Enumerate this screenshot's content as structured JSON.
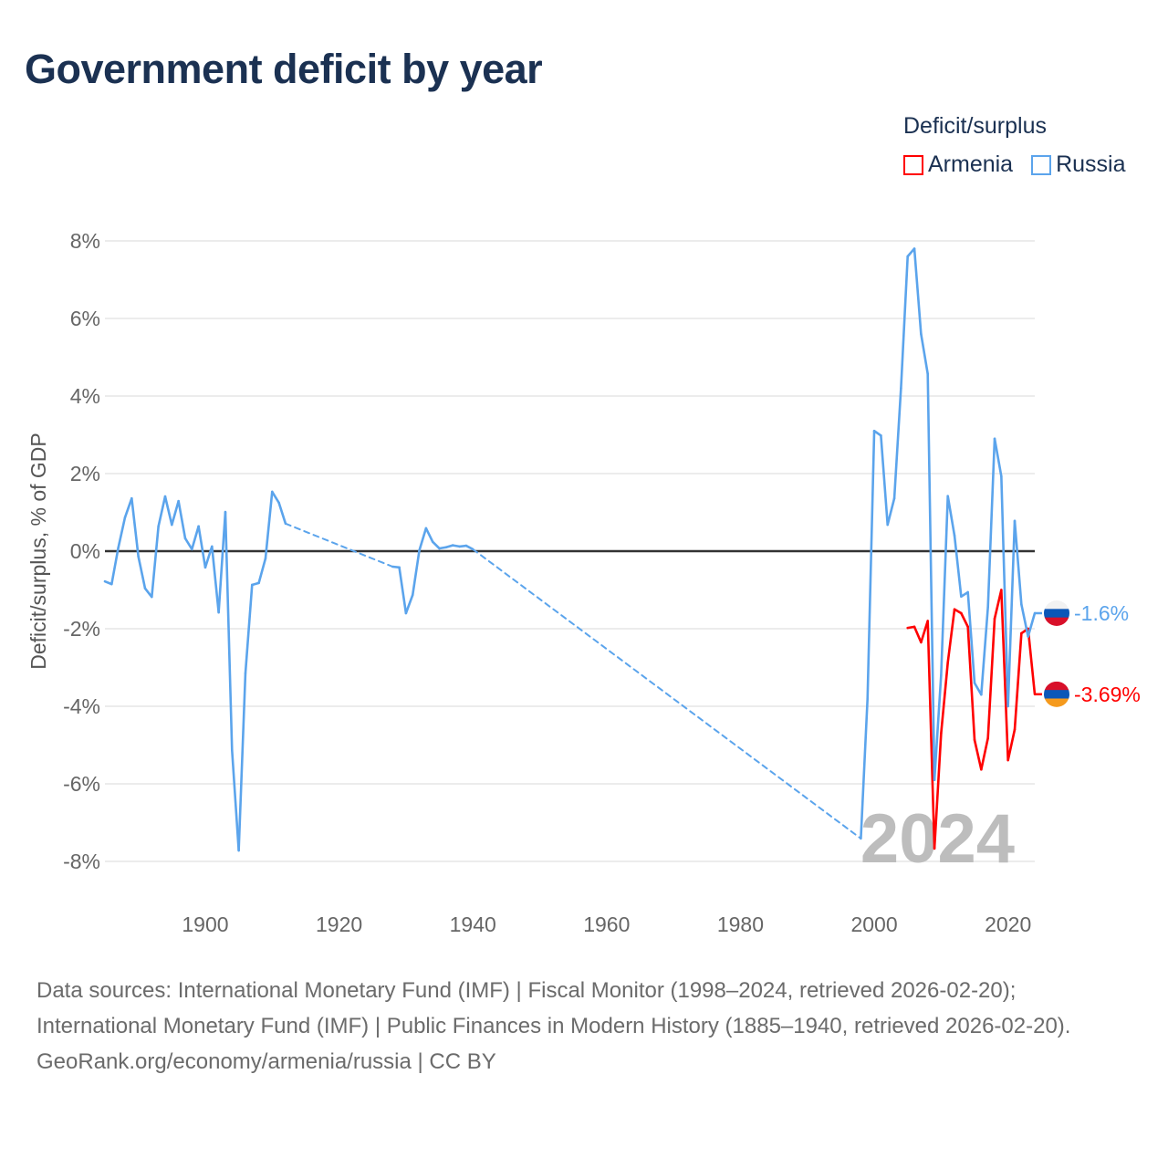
{
  "chart_data": {
    "type": "line",
    "title": "Government deficit by year",
    "ylabel": "Deficit/surplus, % of GDP",
    "xlabel": "",
    "xlim": [
      1885,
      2024
    ],
    "ylim": [
      -8,
      8
    ],
    "yticks": [
      8,
      6,
      4,
      2,
      0,
      -2,
      -4,
      -6,
      -8
    ],
    "ytick_labels": [
      "8%",
      "6%",
      "4%",
      "2%",
      "0%",
      "-2%",
      "-4%",
      "-6%",
      "-8%"
    ],
    "xticks": [
      1900,
      1920,
      1940,
      1960,
      1980,
      2000,
      2020
    ],
    "xtick_labels": [
      "1900",
      "1920",
      "1940",
      "1960",
      "1980",
      "2000",
      "2020"
    ],
    "grid": true,
    "legend_title": "Deficit/surplus",
    "legend_position": "top-right",
    "watermark_year": "2024",
    "series": [
      {
        "name": "Armenia",
        "color": "#ff0000",
        "end_label": "-3.69%",
        "x": [
          2005,
          2006,
          2007,
          2008,
          2009,
          2010,
          2011,
          2012,
          2013,
          2014,
          2015,
          2016,
          2017,
          2018,
          2019,
          2020,
          2021,
          2022,
          2023,
          2024
        ],
        "values": [
          -1.98,
          -1.95,
          -2.35,
          -1.8,
          -7.67,
          -4.7,
          -2.87,
          -1.5,
          -1.6,
          -1.95,
          -4.87,
          -5.63,
          -4.82,
          -1.74,
          -1.0,
          -5.39,
          -4.6,
          -2.12,
          -2.0,
          -3.69
        ]
      },
      {
        "name": "Russia",
        "color": "#5ba4ec",
        "end_label": "-1.6%",
        "x": [
          1885,
          1886,
          1887,
          1888,
          1889,
          1890,
          1891,
          1892,
          1893,
          1894,
          1895,
          1896,
          1897,
          1898,
          1899,
          1900,
          1901,
          1902,
          1903,
          1904,
          1905,
          1906,
          1907,
          1908,
          1909,
          1910,
          1911,
          1912,
          1928,
          1929,
          1930,
          1931,
          1932,
          1933,
          1934,
          1935,
          1936,
          1937,
          1938,
          1939,
          1940,
          1998,
          1999,
          2000,
          2001,
          2002,
          2003,
          2004,
          2005,
          2006,
          2007,
          2008,
          2009,
          2010,
          2011,
          2012,
          2013,
          2014,
          2015,
          2016,
          2017,
          2018,
          2019,
          2020,
          2021,
          2022,
          2023,
          2024
        ],
        "values": [
          -0.78,
          -0.85,
          0.09,
          0.87,
          1.36,
          -0.14,
          -0.96,
          -1.18,
          0.64,
          1.41,
          0.68,
          1.29,
          0.33,
          0.05,
          0.64,
          -0.42,
          0.12,
          -1.58,
          1.01,
          -5.13,
          -7.72,
          -3.15,
          -0.87,
          -0.82,
          -0.19,
          1.53,
          1.25,
          0.71,
          -0.4,
          -0.42,
          -1.6,
          -1.13,
          0.02,
          0.59,
          0.24,
          0.07,
          0.1,
          0.15,
          0.12,
          0.14,
          0.05,
          -7.41,
          -3.8,
          3.1,
          2.98,
          0.68,
          1.36,
          4.2,
          7.6,
          7.8,
          5.6,
          4.57,
          -5.9,
          -3.2,
          1.42,
          0.4,
          -1.17,
          -1.06,
          -3.4,
          -3.7,
          -1.44,
          2.9,
          1.93,
          -4.0,
          0.78,
          -1.37,
          -2.2,
          -1.6
        ]
      }
    ]
  },
  "footer": {
    "sources": "Data sources: International Monetary Fund (IMF) | Fiscal Monitor (1998–2024, retrieved 2026-02-20); International Monetary Fund (IMF) | Public Finances in Modern History (1885–1940, retrieved 2026-02-20).",
    "credit": "GeoRank.org/economy/armenia/russia | CC BY"
  }
}
